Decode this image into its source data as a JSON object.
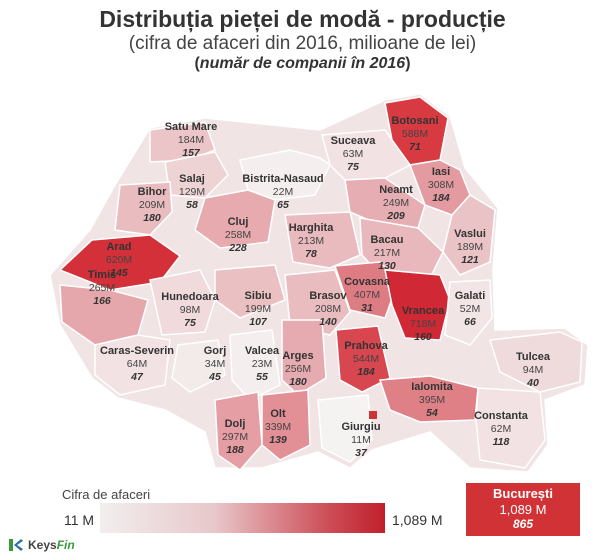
{
  "title": "Distribuția pieței de modă - producție",
  "subtitle": "(cifra de afaceri din 2016, milioane de lei)",
  "subtitle2_inner": "număr de companii în 2016",
  "counties": [
    {
      "name": "Satu Mare",
      "value": "184M",
      "companies": "157",
      "fill": "#ecc5c8"
    },
    {
      "name": "Botosani",
      "value": "588M",
      "companies": "71",
      "fill": "#d83a42"
    },
    {
      "name": "Suceava",
      "value": "63M",
      "companies": "75",
      "fill": "#f2e2e3"
    },
    {
      "name": "Salaj",
      "value": "129M",
      "companies": "58",
      "fill": "#eed3d5"
    },
    {
      "name": "Bistrita-Nasaud",
      "value": "22M",
      "companies": "65",
      "fill": "#f4eeee"
    },
    {
      "name": "Iasi",
      "value": "308M",
      "companies": "184",
      "fill": "#e39aa0"
    },
    {
      "name": "Bihor",
      "value": "209M",
      "companies": "180",
      "fill": "#e9bcc0"
    },
    {
      "name": "Neamt",
      "value": "249M",
      "companies": "209",
      "fill": "#e6aeb2"
    },
    {
      "name": "Cluj",
      "value": "258M",
      "companies": "228",
      "fill": "#e6aaaf"
    },
    {
      "name": "Harghita",
      "value": "213M",
      "companies": "78",
      "fill": "#e9bbbf"
    },
    {
      "name": "Vaslui",
      "value": "189M",
      "companies": "121",
      "fill": "#eac3c6"
    },
    {
      "name": "Arad",
      "value": "620M",
      "companies": "145",
      "fill": "#d3303a"
    },
    {
      "name": "Bacau",
      "value": "217M",
      "companies": "130",
      "fill": "#e8b8bc"
    },
    {
      "name": "Covasna",
      "value": "407M",
      "companies": "31",
      "fill": "#de7c84"
    },
    {
      "name": "Timis",
      "value": "265M",
      "companies": "166",
      "fill": "#e5a7ac"
    },
    {
      "name": "Hunedoara",
      "value": "98M",
      "companies": "75",
      "fill": "#f0dadc"
    },
    {
      "name": "Sibiu",
      "value": "199M",
      "companies": "107",
      "fill": "#eac0c3"
    },
    {
      "name": "Brasov",
      "value": "208M",
      "companies": "140",
      "fill": "#e9bcc0"
    },
    {
      "name": "Vrancea",
      "value": "718M",
      "companies": "160",
      "fill": "#d02834"
    },
    {
      "name": "Galati",
      "value": "52M",
      "companies": "66",
      "fill": "#f2e5e6"
    },
    {
      "name": "Caras-Severin",
      "value": "64M",
      "companies": "47",
      "fill": "#f2e2e3"
    },
    {
      "name": "Gorj",
      "value": "34M",
      "companies": "45",
      "fill": "#f3eaea"
    },
    {
      "name": "Valcea",
      "value": "23M",
      "companies": "55",
      "fill": "#f4eeee"
    },
    {
      "name": "Arges",
      "value": "256M",
      "companies": "180",
      "fill": "#e6abb0"
    },
    {
      "name": "Prahova",
      "value": "544M",
      "companies": "184",
      "fill": "#d84650"
    },
    {
      "name": "Tulcea",
      "value": "94M",
      "companies": "40",
      "fill": "#f0dbdc"
    },
    {
      "name": "Ialomita",
      "value": "395M",
      "companies": "54",
      "fill": "#df8087"
    },
    {
      "name": "Dolj",
      "value": "297M",
      "companies": "188",
      "fill": "#e49ea4"
    },
    {
      "name": "Olt",
      "value": "339M",
      "companies": "139",
      "fill": "#e28f96"
    },
    {
      "name": "Giurgiu",
      "value": "11M",
      "companies": "37",
      "fill": "#f5f2f2"
    },
    {
      "name": "Constanta",
      "value": "62M",
      "companies": "118",
      "fill": "#f2e2e3"
    }
  ],
  "legend": {
    "title": "Cifra de afaceri",
    "min": "11 M",
    "max": "1,089 M"
  },
  "bucuresti": {
    "name": "București",
    "value": "1,089 M",
    "companies": "865",
    "fill": "#d13236"
  },
  "logo": {
    "keys": "Keys",
    "fin": "Fin"
  }
}
